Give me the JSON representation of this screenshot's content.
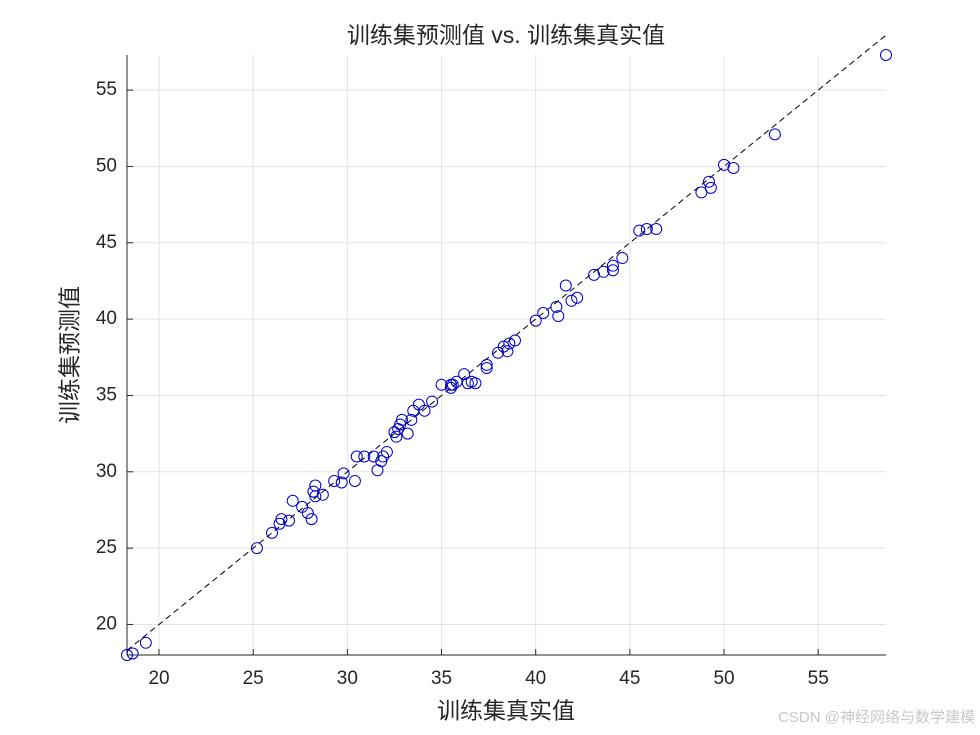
{
  "chart_data": {
    "type": "scatter",
    "title": "训练集预测值 vs. 训练集真实值",
    "x_label": "训练集真实值",
    "y_label": "训练集预测值",
    "watermark": "CSDN @神经网络与数学建模",
    "color": "#0000cc",
    "reference_line": {
      "style": "dashed",
      "color": "#000000"
    },
    "grid": true,
    "xlim": [
      18.3,
      58.6
    ],
    "ylim": [
      18.0,
      57.3
    ],
    "xticks": [
      20,
      25,
      30,
      35,
      40,
      45,
      50,
      55
    ],
    "yticks": [
      20,
      25,
      30,
      35,
      40,
      45,
      50,
      55
    ],
    "x": [
      18.3,
      18.6,
      19.3,
      25.2,
      26.0,
      26.4,
      26.5,
      26.9,
      27.1,
      27.6,
      27.9,
      28.1,
      28.2,
      28.3,
      28.3,
      28.7,
      29.3,
      29.7,
      29.8,
      30.4,
      30.5,
      30.9,
      31.4,
      31.6,
      31.8,
      31.9,
      32.1,
      32.5,
      32.6,
      32.7,
      32.9,
      32.8,
      33.2,
      33.4,
      33.5,
      33.8,
      34.1,
      34.5,
      35.0,
      35.5,
      35.5,
      35.6,
      35.8,
      36.2,
      36.4,
      36.6,
      36.8,
      37.4,
      37.4,
      38.0,
      38.3,
      38.5,
      38.6,
      38.9,
      40.0,
      40.4,
      41.1,
      41.2,
      41.6,
      41.9,
      42.2,
      43.1,
      43.6,
      44.1,
      44.1,
      44.6,
      45.5,
      45.9,
      46.4,
      48.8,
      49.2,
      49.3,
      50.0,
      50.5,
      52.7,
      58.6
    ],
    "values": [
      18.0,
      18.1,
      18.8,
      25.0,
      26.0,
      26.6,
      26.9,
      26.8,
      28.1,
      27.7,
      27.3,
      26.9,
      28.7,
      29.1,
      28.4,
      28.5,
      29.4,
      29.3,
      29.9,
      29.4,
      31.0,
      31.0,
      31.0,
      30.1,
      30.7,
      31.0,
      31.3,
      32.6,
      32.3,
      32.8,
      33.4,
      33.1,
      32.5,
      33.4,
      34.0,
      34.4,
      34.0,
      34.6,
      35.7,
      35.7,
      35.5,
      35.7,
      35.9,
      36.4,
      35.8,
      35.9,
      35.8,
      36.8,
      37.0,
      37.8,
      38.2,
      37.9,
      38.4,
      38.6,
      39.9,
      40.4,
      40.8,
      40.2,
      42.2,
      41.2,
      41.4,
      42.9,
      43.1,
      43.2,
      43.5,
      44.0,
      45.8,
      45.9,
      45.9,
      48.3,
      49.0,
      48.6,
      50.1,
      49.9,
      52.1,
      57.3
    ]
  }
}
